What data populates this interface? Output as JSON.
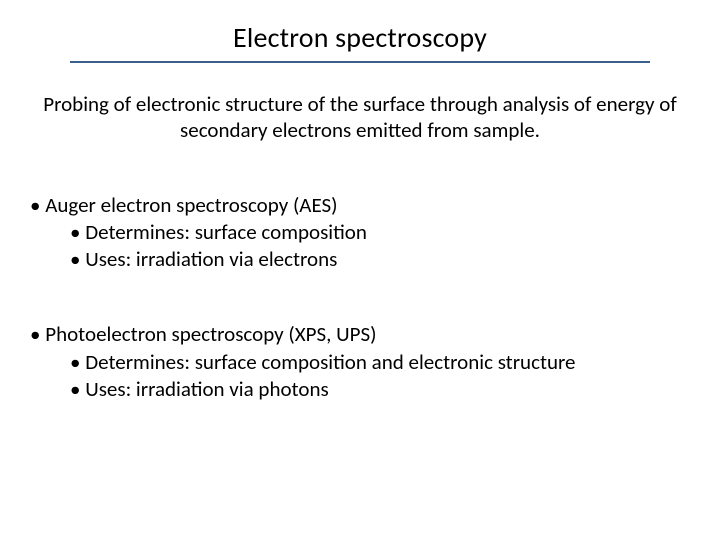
{
  "title": "Electron spectroscopy",
  "description": "Probing of electronic structure of the surface through analysis of energy of secondary electrons emitted from sample.",
  "bullets": [
    {
      "text": "Auger electron spectroscopy (AES)",
      "sub": [
        "Determines: surface composition",
        "Uses: irradiation via electrons"
      ]
    },
    {
      "text": "Photoelectron spectroscopy (XPS, UPS)",
      "sub": [
        "Determines: surface composition and electronic structure",
        "Uses: irradiation via photons"
      ]
    }
  ],
  "colors": {
    "title_underline": "#3a5f8a",
    "text": "#000000",
    "background": "#ffffff"
  },
  "font": {
    "family": "Calibri",
    "title_size_pt": 21,
    "body_size_pt": 16
  }
}
